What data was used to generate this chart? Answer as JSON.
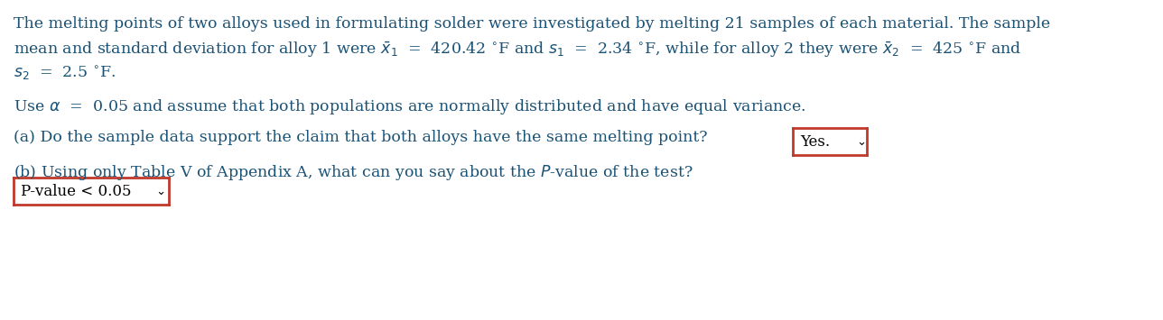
{
  "bg_color": "#ffffff",
  "text_color": "#1a5276",
  "box_border_color": "#c0392b",
  "font_size": 12.5,
  "figsize": [
    12.88,
    3.55
  ],
  "dpi": 100,
  "line1": "The melting points of two alloys used in formulating solder were investigated by melting 21 samples of each material. The sample",
  "line2": "mean and standard deviation for alloy 1 were $\\bar{x}_1$  =  420.42 $^{\\circ}$F and $s_1$  =  2.34 $^{\\circ}$F, while for alloy 2 they were $\\bar{x}_2$  =  425 $^{\\circ}$F and",
  "line3": "$s_2$  =  2.5 $^{\\circ}$F.",
  "line4": "Use $\\alpha$  =  0.05 and assume that both populations are normally distributed and have equal variance.",
  "line5": "(a) Do the sample data support the claim that both alloys have the same melting point?",
  "answer_a": "Yes.",
  "line6a": "(b) Using only Table V of Appendix A, what can you say about the ",
  "line6b": "$P$-value of the test?",
  "answer_b": "P-value < 0.05"
}
